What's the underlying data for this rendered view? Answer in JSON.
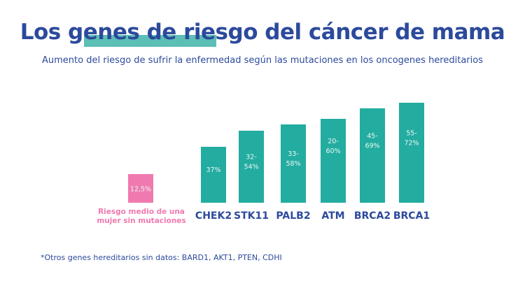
{
  "title_pre": "Los ",
  "title_highlight": "genes de riesgo",
  "title_post": " del cáncer de mama",
  "subtitle": "Aumento del riesgo de sufrir la enfermedad según las mutaciones en los oncogenes hereditarios",
  "footnote": "*Otros genes hereditarios sin datos: BARD1, AKT1, PTEN, CDHI",
  "colors": {
    "bar": "#23aca0",
    "baseline": "#f07aaf",
    "label": "#2c4a9c",
    "baseline_label": "#f07aaf"
  },
  "chart_data": {
    "type": "bar",
    "title": "Los genes de riesgo del cáncer de mama",
    "categories": [
      "Riesgo medio de una mujer sin mutaciones",
      "CHEK2",
      "STK11",
      "PALB2",
      "ATM",
      "BRCA2",
      "BRCA1"
    ],
    "values": [
      12.5,
      37,
      54,
      58,
      60,
      69,
      72
    ],
    "labels": [
      "12,5%",
      "37%",
      "32-\n54%",
      "33-\n58%",
      "20-\n60%",
      "45-\n69%",
      "55-\n72%"
    ],
    "ranges": [
      [
        12.5,
        12.5
      ],
      [
        37,
        37
      ],
      [
        32,
        54
      ],
      [
        33,
        58
      ],
      [
        20,
        60
      ],
      [
        45,
        69
      ],
      [
        55,
        72
      ]
    ],
    "xlabel": "",
    "ylabel": "",
    "ylim": [
      0,
      75
    ],
    "grid": false,
    "legend": "none"
  }
}
